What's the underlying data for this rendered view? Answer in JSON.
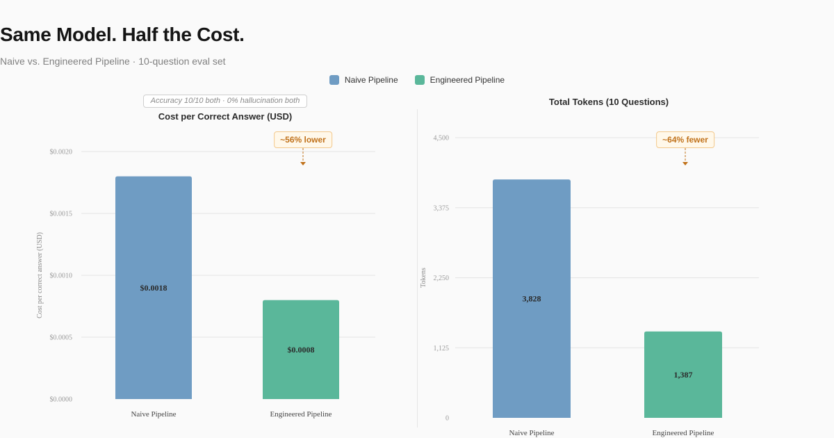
{
  "header": {
    "title": "Same Model. Half the Cost.",
    "subtitle": "Naive vs. Engineered Pipeline · 10-question eval set"
  },
  "legend": [
    {
      "label": "Naive Pipeline",
      "color": "#6f9cc3"
    },
    {
      "label": "Engineered Pipeline",
      "color": "#5ab79a"
    }
  ],
  "note": "Accuracy 10/10 both · 0% hallucination both",
  "chart_data": [
    {
      "type": "bar",
      "title": "Cost per Correct Answer (USD)",
      "ylabel": "Cost per correct answer (USD)",
      "categories": [
        "Naive Pipeline",
        "Engineered Pipeline"
      ],
      "values": [
        0.0018,
        0.0008
      ],
      "value_labels": [
        "$0.0018",
        "$0.0008"
      ],
      "colors": [
        "#6f9cc3",
        "#5ab79a"
      ],
      "ylim": [
        0,
        0.002
      ],
      "yticks": [
        0,
        0.0005,
        0.001,
        0.0015,
        0.002
      ],
      "ytick_labels": [
        "$0.0000",
        "$0.0005",
        "$0.0010",
        "$0.0015",
        "$0.0020"
      ],
      "annotation": "~56% lower",
      "annotation_target": "Engineered Pipeline",
      "grid": true
    },
    {
      "type": "bar",
      "title": "Total Tokens (10 Questions)",
      "ylabel": "Tokens",
      "categories": [
        "Naive Pipeline",
        "Engineered Pipeline"
      ],
      "values": [
        3828,
        1387
      ],
      "value_labels": [
        "3,828",
        "1,387"
      ],
      "colors": [
        "#6f9cc3",
        "#5ab79a"
      ],
      "ylim": [
        0,
        4500
      ],
      "yticks": [
        0,
        1125,
        2250,
        3375,
        4500
      ],
      "ytick_labels": [
        "0",
        "1,125",
        "2,250",
        "3,375",
        "4,500"
      ],
      "annotation": "~64% fewer",
      "annotation_target": "Engineered Pipeline",
      "grid": true
    }
  ]
}
